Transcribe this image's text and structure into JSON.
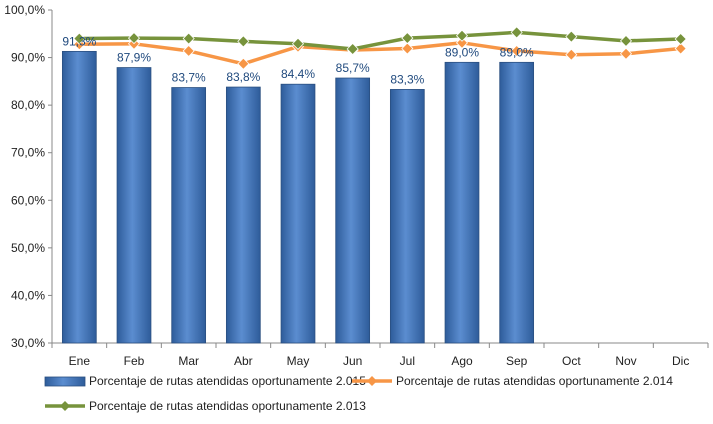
{
  "chart_data": {
    "type": "bar",
    "categories": [
      "Ene",
      "Feb",
      "Mar",
      "Abr",
      "May",
      "Jun",
      "Jul",
      "Ago",
      "Sep",
      "Oct",
      "Nov",
      "Dic"
    ],
    "ylim": [
      30,
      100
    ],
    "yticks": [
      "30,0%",
      "40,0%",
      "50,0%",
      "60,0%",
      "70,0%",
      "80,0%",
      "90,0%",
      "100,0%"
    ],
    "ytick_values": [
      30,
      40,
      50,
      60,
      70,
      80,
      90,
      100
    ],
    "grid": false,
    "legend_position": "bottom",
    "series": [
      {
        "name": "Porcentaje de rutas atendidas oportunamente 2.015",
        "type": "bar",
        "color": "#4F81BD",
        "values": [
          91.3,
          87.9,
          83.7,
          83.8,
          84.4,
          85.7,
          83.3,
          89.0,
          89.0,
          null,
          null,
          null
        ],
        "labels": [
          "91,3%",
          "87,9%",
          "83,7%",
          "83,8%",
          "84,4%",
          "85,7%",
          "83,3%",
          "89,0%",
          "89,0%",
          "",
          "",
          ""
        ]
      },
      {
        "name": "Porcentaje de rutas atendidas oportunamente 2.014",
        "type": "line",
        "color": "#F79646",
        "values": [
          92.8,
          92.9,
          91.4,
          88.7,
          92.3,
          91.6,
          91.9,
          93.1,
          91.4,
          90.6,
          90.8,
          91.9
        ]
      },
      {
        "name": "Porcentaje de rutas atendidas oportunamente 2.013",
        "type": "line",
        "color": "#77933C",
        "values": [
          94.0,
          94.1,
          94.0,
          93.4,
          92.9,
          91.8,
          94.1,
          94.6,
          95.3,
          94.4,
          93.5,
          93.9
        ]
      }
    ]
  }
}
